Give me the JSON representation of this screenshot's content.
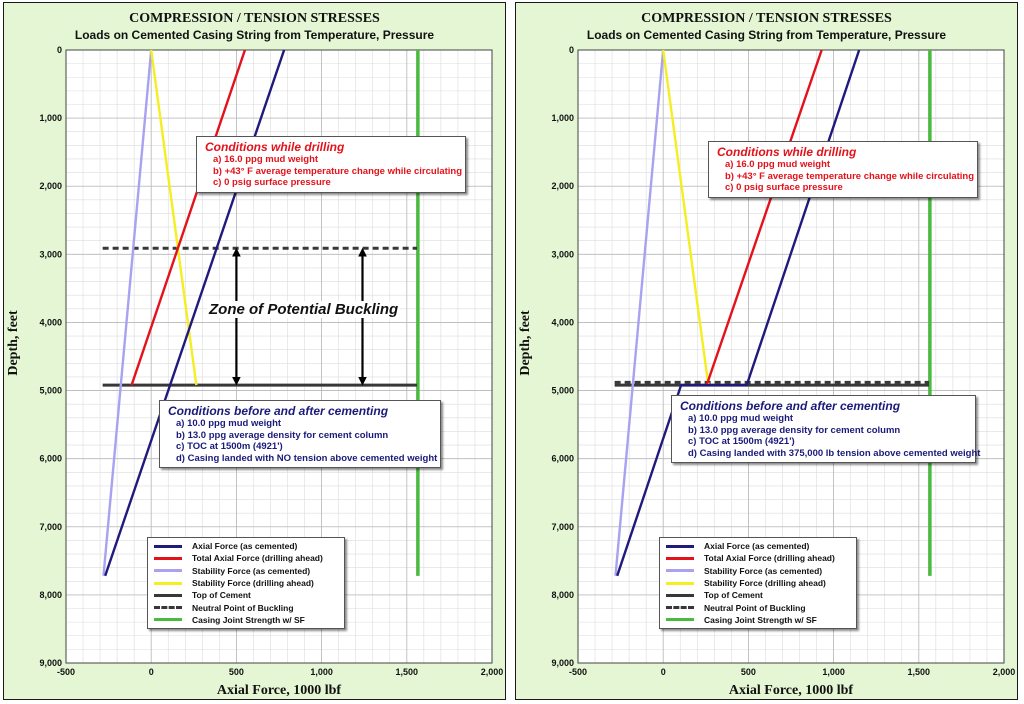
{
  "chart_data": [
    {
      "type": "line",
      "title": "COMPRESSION / TENSION STRESSES",
      "subtitle": "Loads on Cemented Casing String from Temperature, Pressure",
      "xlabel": "Axial Force, 1000 lbf",
      "ylabel": "Depth, feet",
      "xlim": [
        -500,
        2000
      ],
      "ylim": [
        0,
        9000
      ],
      "y_inverted": true,
      "grid": true,
      "x_ticks": [
        "-500",
        "0",
        "500",
        "1,000",
        "1,500",
        "2,000"
      ],
      "y_ticks": [
        "0",
        "1,000",
        "2,000",
        "3,000",
        "4,000",
        "5,000",
        "6,000",
        "7,000",
        "8,000",
        "9,000"
      ],
      "legend_position": "bottom-center",
      "series": [
        {
          "name": "Axial Force (as cemented)",
          "color": "#1f1a7c",
          "style": "solid",
          "points": [
            [
              -270,
              7720
            ],
            [
              780,
              0
            ]
          ]
        },
        {
          "name": "Total Axial Force (drilling ahead)",
          "color": "#e3121b",
          "style": "solid",
          "points": [
            [
              -115,
              4920
            ],
            [
              550,
              0
            ]
          ]
        },
        {
          "name": "Stability Force (as cemented)",
          "color": "#a8a2f0",
          "style": "solid",
          "points": [
            [
              -280,
              7720
            ],
            [
              0,
              0
            ]
          ]
        },
        {
          "name": "Stability Force (drilling ahead)",
          "color": "#f4ee22",
          "style": "solid",
          "points": [
            [
              0,
              0
            ],
            [
              265,
              4920
            ]
          ]
        },
        {
          "name": "Top of Cement",
          "color": "#383838",
          "style": "solid",
          "points": [
            [
              -285,
              4921
            ],
            [
              1560,
              4921
            ]
          ]
        },
        {
          "name": "Neutral Point of Buckling",
          "color": "#383838",
          "style": "dashed",
          "points": [
            [
              -285,
              2910
            ],
            [
              1560,
              2910
            ]
          ]
        },
        {
          "name": "Casing Joint Strength w/ SF",
          "color": "#49b940",
          "style": "solid",
          "points": [
            [
              1565,
              0
            ],
            [
              1565,
              7720
            ]
          ]
        }
      ],
      "annotations": {
        "zone_label": "Zone of Potential Buckling",
        "drilling": {
          "title": "Conditions while drilling",
          "lines": [
            "a)  16.0 ppg mud weight",
            "b)  +43° F average temperature change while circulating",
            "c)  0 psig surface pressure"
          ]
        },
        "cementing": {
          "title": "Conditions before and after cementing",
          "lines": [
            "a)  10.0 ppg mud weight",
            "b)  13.0 ppg average density for cement column",
            "c)  TOC at 1500m (4921')",
            "d) Casing landed with NO tension above cemented weight"
          ]
        }
      }
    },
    {
      "type": "line",
      "title": "COMPRESSION / TENSION STRESSES",
      "subtitle": "Loads on Cemented Casing String from Temperature, Pressure",
      "xlabel": "Axial Force, 1000 lbf",
      "ylabel": "Depth, feet",
      "xlim": [
        -500,
        2000
      ],
      "ylim": [
        0,
        9000
      ],
      "y_inverted": true,
      "grid": true,
      "x_ticks": [
        "-500",
        "0",
        "500",
        "1,000",
        "1,500",
        "2,000"
      ],
      "y_ticks": [
        "0",
        "1,000",
        "2,000",
        "3,000",
        "4,000",
        "5,000",
        "6,000",
        "7,000",
        "8,000",
        "9,000"
      ],
      "legend_position": "bottom-center",
      "series": [
        {
          "name": "Axial Force (as cemented)",
          "color": "#1f1a7c",
          "style": "solid",
          "points": [
            [
              -270,
              7720
            ],
            [
              105,
              4921
            ],
            [
              490,
              4921
            ],
            [
              1150,
              0
            ]
          ]
        },
        {
          "name": "Total Axial Force (drilling ahead)",
          "color": "#e3121b",
          "style": "solid",
          "points": [
            [
              255,
              4921
            ],
            [
              930,
              0
            ]
          ]
        },
        {
          "name": "Stability Force (as cemented)",
          "color": "#a8a2f0",
          "style": "solid",
          "points": [
            [
              -280,
              7720
            ],
            [
              0,
              0
            ]
          ]
        },
        {
          "name": "Stability Force (drilling ahead)",
          "color": "#f4ee22",
          "style": "solid",
          "points": [
            [
              0,
              0
            ],
            [
              265,
              4921
            ]
          ]
        },
        {
          "name": "Top of Cement",
          "color": "#383838",
          "style": "solid",
          "points": [
            [
              -285,
              4921
            ],
            [
              1560,
              4921
            ]
          ]
        },
        {
          "name": "Neutral Point of Buckling",
          "color": "#383838",
          "style": "dashed",
          "points": [
            [
              -285,
              4880
            ],
            [
              1560,
              4880
            ]
          ]
        },
        {
          "name": "Casing Joint Strength w/ SF",
          "color": "#49b940",
          "style": "solid",
          "points": [
            [
              1565,
              0
            ],
            [
              1565,
              7720
            ]
          ]
        }
      ],
      "annotations": {
        "drilling": {
          "title": "Conditions while drilling",
          "lines": [
            "a)  16.0 ppg mud weight",
            "b)  +43° F average temperature change while circulating",
            "c)  0 psig surface pressure"
          ]
        },
        "cementing": {
          "title": "Conditions before and after cementing",
          "lines": [
            "a)  10.0 ppg mud weight",
            "b)  13.0 ppg average density for cement column",
            "c)  TOC at 1500m (4921')",
            "d) Casing landed with 375,000 lb tension above cemented weight"
          ]
        }
      }
    }
  ]
}
